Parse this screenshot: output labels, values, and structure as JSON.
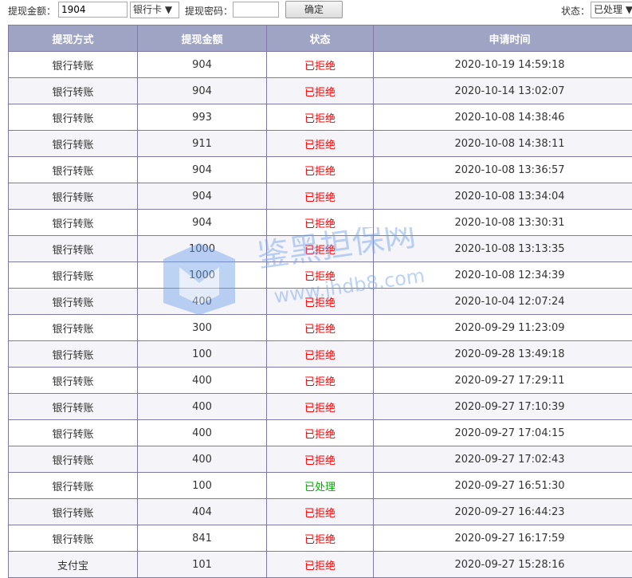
{
  "toolbar": {
    "amount_label": "提现金额：",
    "amount_value": "1904",
    "method_select": "银行卡 ▼",
    "password_label": "提现密码：",
    "password_value": "",
    "confirm_label": "确定",
    "status_label": "状态：",
    "status_select": "已处理 ▼"
  },
  "table": {
    "headers": [
      "提现方式",
      "提现金额",
      "状态",
      "申请时间"
    ],
    "rows": [
      [
        "银行转账",
        "904",
        "已拒绝",
        "2020-10-19 14:59:18"
      ],
      [
        "银行转账",
        "904",
        "已拒绝",
        "2020-10-14 13:02:07"
      ],
      [
        "银行转账",
        "993",
        "已拒绝",
        "2020-10-08 14:38:46"
      ],
      [
        "银行转账",
        "911",
        "已拒绝",
        "2020-10-08 14:38:11"
      ],
      [
        "银行转账",
        "904",
        "已拒绝",
        "2020-10-08 13:36:57"
      ],
      [
        "银行转账",
        "904",
        "已拒绝",
        "2020-10-08 13:34:04"
      ],
      [
        "银行转账",
        "904",
        "已拒绝",
        "2020-10-08 13:30:31"
      ],
      [
        "银行转账",
        "1000",
        "已拒绝",
        "2020-10-08 13:13:35"
      ],
      [
        "银行转账",
        "1000",
        "已拒绝",
        "2020-10-08 12:34:39"
      ],
      [
        "银行转账",
        "400",
        "已拒绝",
        "2020-10-04 12:07:24"
      ],
      [
        "银行转账",
        "300",
        "已拒绝",
        "2020-09-29 11:23:09"
      ],
      [
        "银行转账",
        "100",
        "已拒绝",
        "2020-09-28 13:49:18"
      ],
      [
        "银行转账",
        "400",
        "已拒绝",
        "2020-09-27 17:29:11"
      ],
      [
        "银行转账",
        "400",
        "已拒绝",
        "2020-09-27 17:10:39"
      ],
      [
        "银行转账",
        "400",
        "已拒绝",
        "2020-09-27 17:04:15"
      ],
      [
        "银行转账",
        "400",
        "已拒绝",
        "2020-09-27 17:02:43"
      ],
      [
        "银行转账",
        "100",
        "已处理",
        "2020-09-27 16:51:30"
      ],
      [
        "银行转账",
        "404",
        "已拒绝",
        "2020-09-27 16:44:23"
      ],
      [
        "银行转账",
        "841",
        "已拒绝",
        "2020-09-27 16:17:59"
      ],
      [
        "支付宝",
        "101",
        "已拒绝",
        "2020-09-27 15:28:16"
      ]
    ]
  },
  "colors": {
    "rejected": "#ff0000",
    "processed": "#00b000",
    "header_bg": "#a0a4c4"
  },
  "watermark": {
    "name": "鉴黑担保网",
    "url": "www.jhdb8.com"
  }
}
